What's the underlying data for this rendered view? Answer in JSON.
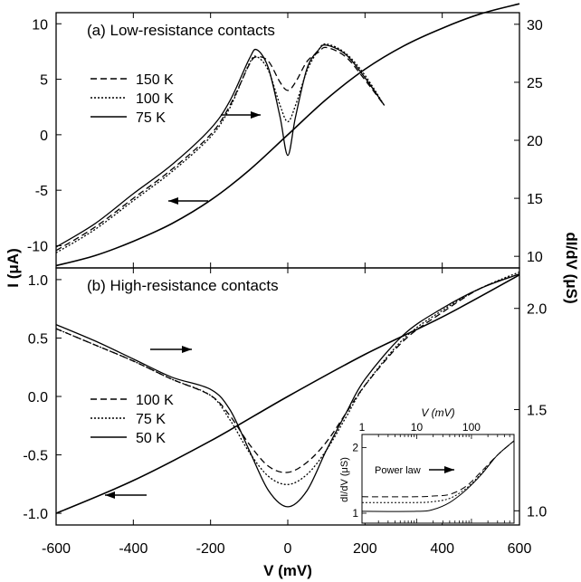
{
  "chart_data": [
    {
      "panel": "a",
      "type": "line",
      "title": "(a) Low-resistance contacts",
      "xlabel": "V (mV)",
      "ylabel_left": "I (μA)",
      "ylabel_right": "dI/dV (μS)",
      "xlim": [
        -600,
        600
      ],
      "ylim_left": [
        -12,
        11
      ],
      "ylim_right": [
        9,
        31
      ],
      "left_ticks": [
        "10",
        "5",
        "0",
        "-5",
        "-10"
      ],
      "right_ticks": [
        "30",
        "25",
        "20",
        "15",
        "10"
      ],
      "legend": [
        {
          "label": "150 K",
          "style": "dashed"
        },
        {
          "label": "100 K",
          "style": "dotted"
        },
        {
          "label": "75 K",
          "style": "solid"
        }
      ],
      "iv_curve": {
        "axis": "left",
        "x": [
          -600,
          -500,
          -400,
          -300,
          -200,
          -100,
          0,
          100,
          200,
          300,
          400,
          500,
          600
        ],
        "y": [
          -11.8,
          -10.9,
          -9.6,
          -8.0,
          -5.9,
          -3.2,
          0,
          3.2,
          5.9,
          8.0,
          9.6,
          10.9,
          11.8
        ]
      },
      "didv_series": [
        {
          "label": "150 K",
          "axis": "right",
          "x": [
            -600,
            -500,
            -400,
            -300,
            -200,
            -150,
            -100,
            -80,
            -50,
            -20,
            0,
            20,
            50,
            80,
            100,
            150,
            200,
            250
          ],
          "y": [
            10.5,
            12.5,
            15.0,
            17.5,
            20.5,
            23.0,
            26.5,
            27.2,
            26.8,
            25.0,
            24.3,
            25.0,
            26.8,
            27.6,
            28.0,
            27.2,
            25.2,
            23.0
          ]
        },
        {
          "label": "100 K",
          "axis": "right",
          "x": [
            -600,
            -500,
            -400,
            -300,
            -200,
            -150,
            -100,
            -80,
            -50,
            -20,
            0,
            20,
            50,
            80,
            100,
            150,
            200,
            250
          ],
          "y": [
            10.3,
            12.3,
            14.8,
            17.3,
            20.3,
            22.8,
            26.6,
            27.2,
            26.0,
            23.0,
            21.6,
            23.0,
            26.0,
            27.8,
            28.3,
            27.5,
            25.6,
            23.0
          ]
        },
        {
          "label": "75 K",
          "axis": "right",
          "x": [
            -600,
            -500,
            -400,
            -300,
            -200,
            -150,
            -100,
            -80,
            -50,
            -20,
            0,
            20,
            50,
            80,
            100,
            150,
            200,
            250
          ],
          "y": [
            10.8,
            12.8,
            15.4,
            17.9,
            21.0,
            23.4,
            27.0,
            27.8,
            26.2,
            22.0,
            18.7,
            22.0,
            26.2,
            27.8,
            28.2,
            27.4,
            25.4,
            23.0
          ]
        }
      ]
    },
    {
      "panel": "b",
      "type": "line",
      "title": "(b) High-resistance contacts",
      "xlabel": "V (mV)",
      "ylabel_left": "I (μA)",
      "ylabel_right": "dI/dV (μS)",
      "xlim": [
        -600,
        600
      ],
      "ylim_left": [
        -1.1,
        1.1
      ],
      "ylim_right": [
        0.93,
        2.2
      ],
      "left_ticks": [
        "1.0",
        "0.5",
        "0.0",
        "-0.5",
        "-1.0"
      ],
      "right_ticks": [
        "2.0",
        "1.5",
        "1.0"
      ],
      "legend": [
        {
          "label": "100 K",
          "style": "dashed"
        },
        {
          "label": "75 K",
          "style": "dotted"
        },
        {
          "label": "50 K",
          "style": "solid"
        }
      ],
      "iv_curve": {
        "axis": "left",
        "x": [
          -600,
          -400,
          -200,
          0,
          200,
          400,
          600
        ],
        "y": [
          -1.0,
          -0.72,
          -0.38,
          0,
          0.36,
          0.68,
          1.04
        ]
      },
      "didv_series": [
        {
          "label": "100 K",
          "axis": "right",
          "x": [
            -600,
            -500,
            -400,
            -300,
            -200,
            -150,
            -100,
            -50,
            0,
            50,
            100,
            150,
            200,
            300,
            400,
            500,
            600
          ],
          "y": [
            1.9,
            1.82,
            1.74,
            1.65,
            1.57,
            1.47,
            1.33,
            1.22,
            1.19,
            1.24,
            1.34,
            1.48,
            1.62,
            1.84,
            1.98,
            2.1,
            2.17
          ]
        },
        {
          "label": "75 K",
          "axis": "right",
          "x": [
            -600,
            -500,
            -400,
            -300,
            -200,
            -150,
            -100,
            -50,
            0,
            50,
            100,
            150,
            200,
            300,
            400,
            500,
            600
          ],
          "y": [
            1.9,
            1.82,
            1.74,
            1.65,
            1.57,
            1.45,
            1.29,
            1.17,
            1.13,
            1.18,
            1.3,
            1.46,
            1.62,
            1.85,
            1.99,
            2.1,
            2.18
          ]
        },
        {
          "label": "50 K",
          "axis": "right",
          "x": [
            -600,
            -500,
            -400,
            -300,
            -200,
            -150,
            -100,
            -50,
            0,
            50,
            100,
            150,
            200,
            300,
            400,
            500,
            600
          ],
          "y": [
            1.92,
            1.84,
            1.75,
            1.66,
            1.6,
            1.5,
            1.3,
            1.1,
            1.02,
            1.1,
            1.3,
            1.48,
            1.65,
            1.87,
            2.0,
            2.1,
            2.17
          ]
        }
      ]
    },
    {
      "panel": "b-inset",
      "type": "line",
      "xlabel": "V (mV)",
      "ylabel": "dI/dV (μS)",
      "xscale": "log",
      "yscale": "log",
      "xlim": [
        1,
        600
      ],
      "ylim": [
        0.9,
        2.3
      ],
      "x_ticks": [
        "1",
        "10",
        "100"
      ],
      "y_ticks": [
        "2",
        "1"
      ],
      "annotation": "Power law",
      "series": [
        {
          "label": "100 K",
          "x": [
            1,
            10,
            20,
            40,
            80,
            150,
            300,
            600
          ],
          "y": [
            1.19,
            1.19,
            1.2,
            1.22,
            1.33,
            1.55,
            1.85,
            2.15
          ]
        },
        {
          "label": "75 K",
          "x": [
            1,
            10,
            20,
            40,
            80,
            150,
            300,
            600
          ],
          "y": [
            1.12,
            1.12,
            1.13,
            1.17,
            1.3,
            1.52,
            1.85,
            2.15
          ]
        },
        {
          "label": "50 K",
          "x": [
            1,
            10,
            20,
            40,
            80,
            150,
            300,
            600
          ],
          "y": [
            1.02,
            1.02,
            1.04,
            1.12,
            1.28,
            1.5,
            1.85,
            2.15
          ]
        }
      ]
    }
  ]
}
